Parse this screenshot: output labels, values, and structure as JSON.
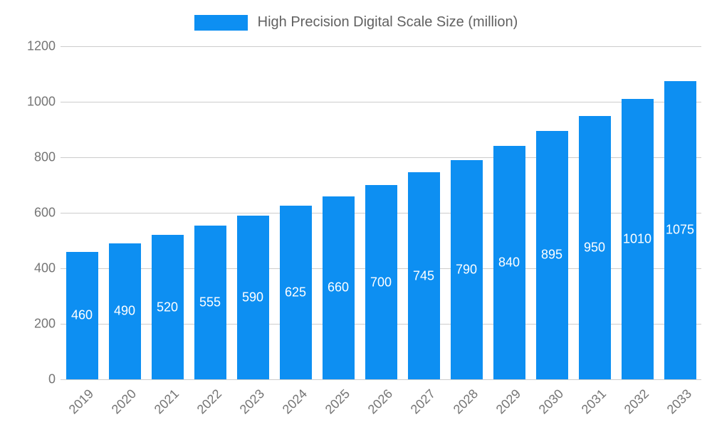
{
  "legend": {
    "label": "High Precision Digital Scale Size (million)"
  },
  "chart_data": {
    "type": "bar",
    "title": "High Precision Digital Scale Size (million)",
    "categories": [
      "2019",
      "2020",
      "2021",
      "2022",
      "2023",
      "2024",
      "2025",
      "2026",
      "2027",
      "2028",
      "2029",
      "2030",
      "2031",
      "2032",
      "2033"
    ],
    "values": [
      460,
      490,
      520,
      555,
      590,
      625,
      660,
      700,
      745,
      790,
      840,
      895,
      950,
      1010,
      1075
    ],
    "xlabel": "",
    "ylabel": "",
    "ylim": [
      0,
      1200
    ],
    "yticks": [
      0,
      200,
      400,
      600,
      800,
      1000,
      1200
    ],
    "grid": true,
    "legend_position": "top",
    "bar_color": "#0d8ff2",
    "value_label_color": "#ffffff",
    "grid_color": "#cccccc",
    "axis_label_color": "#757575",
    "legend_text_color": "#616161"
  }
}
